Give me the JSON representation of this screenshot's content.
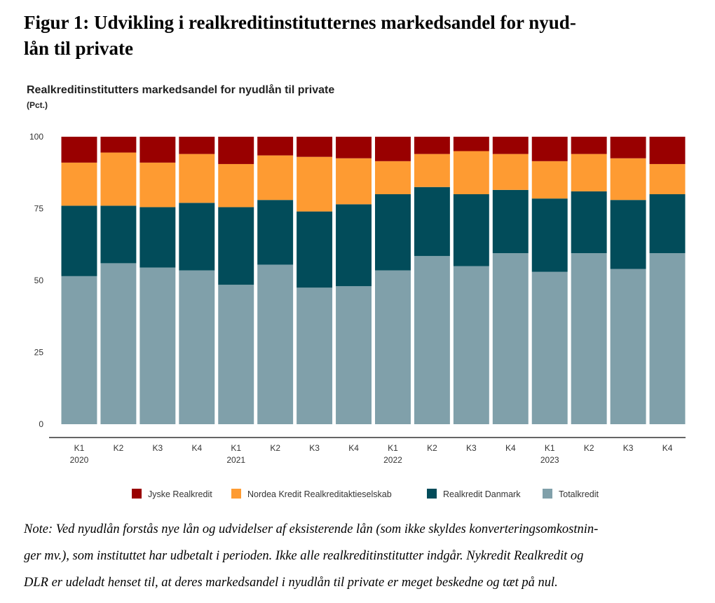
{
  "figure": {
    "title_line1": "Figur 1: Udvikling i realkreditinstitutternes markedsandel for nyud-",
    "title_line2": "lån til private"
  },
  "note": {
    "line1": "Note: Ved nyudlån forstås nye lån og udvidelser af eksisterende lån (som ikke skyldes konverteringsomkostnin-",
    "line2": "ger mv.), som instituttet har udbetalt i perioden. Ikke alle realkreditinstitutter indgår. Nykredit Realkredit og",
    "line3": "DLR er udeladt henset til, at deres markedsandel i nyudlån til private er meget beskedne og tæt på nul."
  },
  "chart_data": {
    "type": "bar",
    "stacked": true,
    "title": "Realkreditinstitutters markedsandel for nyudlån til private",
    "subtitle": "(Pct.)",
    "categories": [
      "K1",
      "K2",
      "K3",
      "K4",
      "K1",
      "K2",
      "K3",
      "K4",
      "K1",
      "K2",
      "K3",
      "K4",
      "K1",
      "K2",
      "K3",
      "K4"
    ],
    "year_labels": [
      "2020",
      "",
      "",
      "",
      "2021",
      "",
      "",
      "",
      "2022",
      "",
      "",
      "",
      "2023",
      "",
      "",
      ""
    ],
    "ylim": [
      0,
      100
    ],
    "yticks": [
      0,
      25,
      50,
      75,
      100
    ],
    "legend_position": "bottom",
    "series": [
      {
        "name": "Totalkredit",
        "color": "#80a0aa",
        "values": [
          51.5,
          56,
          54.5,
          53.5,
          48.5,
          55.5,
          47.5,
          48,
          53.5,
          58.5,
          55,
          59.5,
          53,
          59.5,
          54,
          59.5
        ]
      },
      {
        "name": "Realkredit Danmark",
        "color": "#024c5a",
        "values": [
          24.5,
          20,
          21,
          23.5,
          27,
          22.5,
          26.5,
          28.5,
          26.5,
          24,
          25,
          22,
          25.5,
          21.5,
          24,
          20.5
        ]
      },
      {
        "name": "Nordea Kredit Realkreditaktieselskab",
        "color": "#fe9b32",
        "values": [
          15,
          18.5,
          15.5,
          17,
          15,
          15.5,
          19,
          16,
          11.5,
          11.5,
          15,
          12.5,
          13,
          13,
          14.5,
          10.5
        ]
      },
      {
        "name": "Jyske Realkredit",
        "color": "#990000",
        "values": [
          9,
          5.5,
          9,
          6,
          9.5,
          6.5,
          7,
          7.5,
          8.5,
          6,
          5,
          6,
          8.5,
          6,
          7.5,
          9.5
        ]
      }
    ],
    "legend_order": [
      "Jyske Realkredit",
      "Nordea Kredit Realkreditaktieselskab",
      "Realkredit Danmark",
      "Totalkredit"
    ]
  }
}
